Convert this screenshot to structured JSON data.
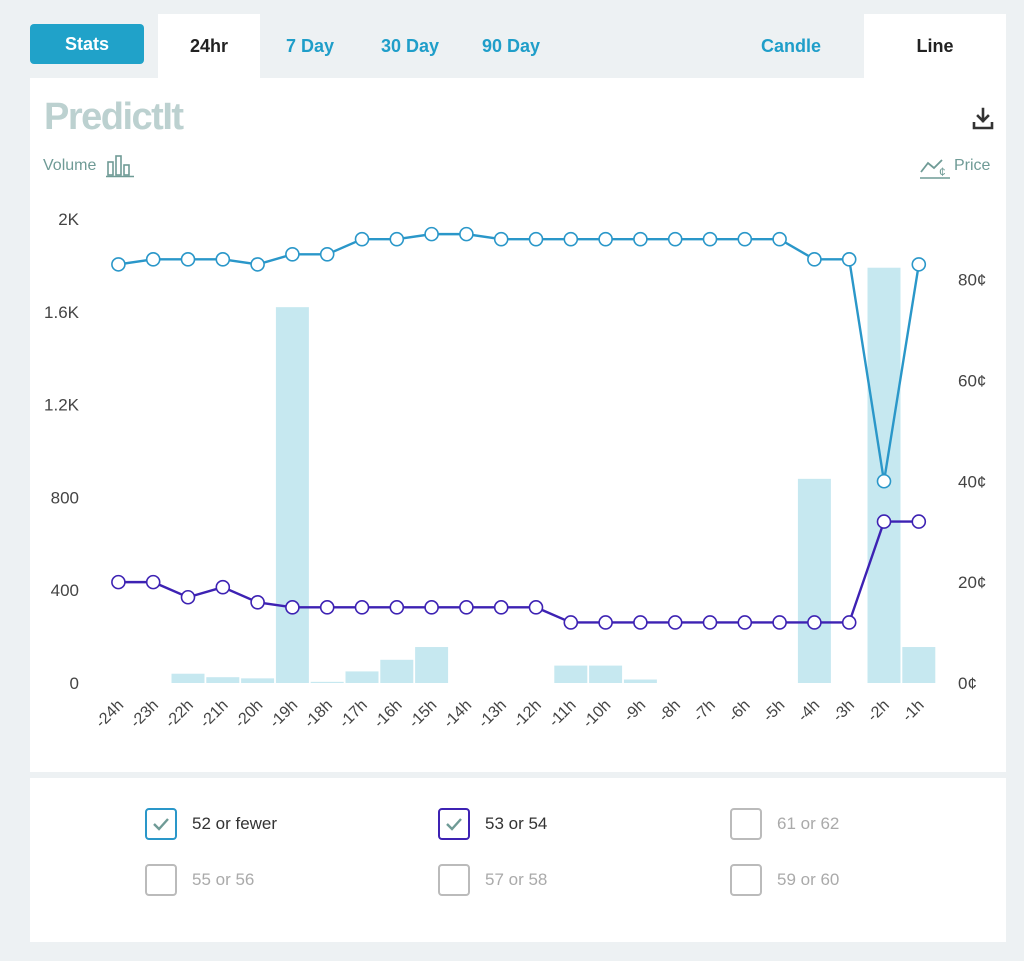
{
  "tabs": {
    "stats": "Stats",
    "range": [
      "24hr",
      "7 Day",
      "30 Day",
      "90 Day"
    ],
    "active_range": 0,
    "style": [
      "Candle",
      "Line"
    ],
    "active_style": 1
  },
  "header": {
    "logo": "PredictIt",
    "volume_label": "Volume",
    "price_label": "Price",
    "icons": {
      "download": "download-icon",
      "volume": "bar-chart-icon",
      "price": "line-chart-cent-icon"
    }
  },
  "chart_data": {
    "type": "line",
    "categories": [
      "-24h",
      "-23h",
      "-22h",
      "-21h",
      "-20h",
      "-19h",
      "-18h",
      "-17h",
      "-16h",
      "-15h",
      "-14h",
      "-13h",
      "-12h",
      "-11h",
      "-10h",
      "-9h",
      "-8h",
      "-7h",
      "-6h",
      "-5h",
      "-4h",
      "-3h",
      "-2h",
      "-1h"
    ],
    "volume": [
      0,
      0,
      40,
      25,
      20,
      1620,
      5,
      50,
      100,
      155,
      0,
      0,
      0,
      75,
      75,
      15,
      0,
      0,
      0,
      0,
      880,
      0,
      1790,
      155
    ],
    "series": [
      {
        "name": "52 or fewer",
        "color": "#2a97c9",
        "values": [
          83,
          84,
          84,
          84,
          83,
          85,
          85,
          88,
          88,
          89,
          89,
          88,
          88,
          88,
          88,
          88,
          88,
          88,
          88,
          88,
          84,
          84,
          40,
          83
        ]
      },
      {
        "name": "53 or 54",
        "color": "#3d22b3",
        "values": [
          20,
          20,
          17,
          19,
          16,
          15,
          15,
          15,
          15,
          15,
          15,
          15,
          15,
          12,
          12,
          12,
          12,
          12,
          12,
          12,
          12,
          12,
          32,
          32
        ]
      }
    ],
    "y_left": {
      "ticks": [
        "0",
        "400",
        "800",
        "1.2K",
        "1.6K",
        "2K"
      ],
      "range": [
        0,
        2000
      ]
    },
    "y_right": {
      "ticks": [
        "0¢",
        "20¢",
        "40¢",
        "60¢",
        "80¢"
      ],
      "range": [
        0,
        92
      ]
    },
    "bar_color": "#c6e8f0"
  },
  "legend": [
    {
      "label": "52 or fewer",
      "checked": true,
      "color": "#2a97c9"
    },
    {
      "label": "53 or 54",
      "checked": true,
      "color": "#3d22b3"
    },
    {
      "label": "61 or 62",
      "checked": false,
      "color": "#bbbbbb"
    },
    {
      "label": "55 or 56",
      "checked": false,
      "color": "#bbbbbb"
    },
    {
      "label": "57 or 58",
      "checked": false,
      "color": "#bbbbbb"
    },
    {
      "label": "59 or 60",
      "checked": false,
      "color": "#bbbbbb"
    }
  ]
}
